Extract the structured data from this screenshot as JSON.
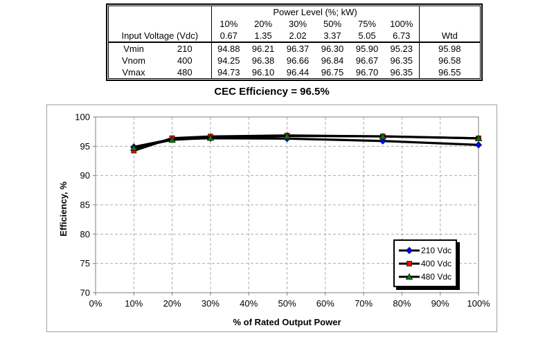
{
  "table": {
    "header": {
      "power_level_title": "Power Level (%; kW)",
      "percent_labels": [
        "10%",
        "20%",
        "30%",
        "50%",
        "75%",
        "100%"
      ],
      "kw_values": [
        "0.67",
        "1.35",
        "2.02",
        "3.37",
        "5.05",
        "6.73"
      ],
      "row_label": "Input Voltage (Vdc)",
      "wtd_label": "Wtd"
    },
    "rows": [
      {
        "name": "Vmin",
        "voltage": "210",
        "values": [
          "94.88",
          "96.21",
          "96.37",
          "96.30",
          "95.90",
          "95.23"
        ],
        "wtd": "95.98"
      },
      {
        "name": "Vnom",
        "voltage": "400",
        "values": [
          "94.25",
          "96.38",
          "96.66",
          "96.84",
          "96.67",
          "96.35"
        ],
        "wtd": "96.58"
      },
      {
        "name": "Vmax",
        "voltage": "480",
        "values": [
          "94.73",
          "96.10",
          "96.44",
          "96.75",
          "96.70",
          "96.35"
        ],
        "wtd": "96.55"
      }
    ]
  },
  "chart_title": "CEC Efficiency = 96.5%",
  "chart_data": {
    "type": "line",
    "title": "CEC Efficiency = 96.5%",
    "x": [
      10,
      20,
      30,
      50,
      75,
      100
    ],
    "series": [
      {
        "name": "210 Vdc",
        "marker": "diamond",
        "marker_color": "#0000ff",
        "line_color": "#000000",
        "values": [
          94.88,
          96.21,
          96.37,
          96.3,
          95.9,
          95.23
        ]
      },
      {
        "name": "400 Vdc",
        "marker": "square",
        "marker_color": "#ff0000",
        "line_color": "#000000",
        "values": [
          94.25,
          96.38,
          96.66,
          96.84,
          96.67,
          96.35
        ]
      },
      {
        "name": "480 Vdc",
        "marker": "triangle",
        "marker_color": "#008000",
        "line_color": "#000000",
        "values": [
          94.73,
          96.1,
          96.44,
          96.75,
          96.7,
          96.35
        ]
      }
    ],
    "xlabel": "% of Rated Output Power",
    "ylabel": "Efficiency, %",
    "xlim": [
      0,
      100
    ],
    "xtick_step": 10,
    "x_tick_suffix": "%",
    "ylim": [
      70,
      100
    ],
    "ytick_step": 5,
    "grid": "dashed",
    "legend_position": "inside-bottom-right",
    "colors": {
      "gridline": "#ababab",
      "plot_border": "#808080",
      "frame_border": "#a0a0a0"
    }
  }
}
